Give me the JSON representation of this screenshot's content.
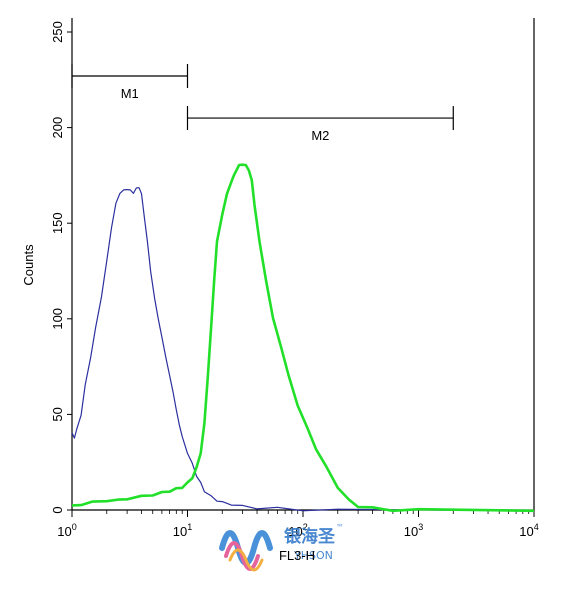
{
  "chart_data": {
    "type": "line",
    "title": "",
    "xlabel": "FL3-H",
    "ylabel": "Counts",
    "xscale": "log",
    "xlim": [
      1,
      10000
    ],
    "ylim": [
      0,
      250
    ],
    "grid": false,
    "x_ticks": [
      {
        "value": 1,
        "base": "10",
        "exp": "0"
      },
      {
        "value": 10,
        "base": "10",
        "exp": "1"
      },
      {
        "value": 100,
        "base": "10",
        "exp": "2"
      },
      {
        "value": 1000,
        "base": "10",
        "exp": "3"
      },
      {
        "value": 10000,
        "base": "10",
        "exp": "4"
      }
    ],
    "y_ticks": [
      "0",
      "50",
      "100",
      "150",
      "200",
      "250"
    ],
    "gates": [
      {
        "label": "M1",
        "x_start": 1,
        "x_end": 10,
        "y": 227
      },
      {
        "label": "M2",
        "x_start": 10,
        "x_end": 2000,
        "y": 205
      }
    ],
    "series": [
      {
        "color": "#2b2f9e",
        "x": [
          1.0,
          1.05,
          1.1,
          1.2,
          1.3,
          1.45,
          1.6,
          1.8,
          2.0,
          2.2,
          2.4,
          2.6,
          2.8,
          3.0,
          3.2,
          3.4,
          3.6,
          3.8,
          4.0,
          4.2,
          4.5,
          4.8,
          5.2,
          5.6,
          6.0,
          6.5,
          7.0,
          7.5,
          8.0,
          8.5,
          9.0,
          10.0,
          11.0,
          12.0,
          13.0,
          14.0,
          16.0,
          18.0,
          20.0,
          24.0,
          30.0,
          40.0,
          60.0,
          100.0,
          200.0,
          10000.0
        ],
        "y": [
          40,
          38,
          42,
          50,
          65,
          80,
          95,
          112,
          130,
          148,
          160,
          166,
          167,
          168,
          167,
          166,
          168,
          169,
          165,
          155,
          140,
          125,
          110,
          100,
          90,
          80,
          70,
          62,
          52,
          45,
          38,
          30,
          24,
          18,
          14,
          10,
          7,
          5,
          4,
          3,
          2,
          1,
          1,
          0,
          0,
          0
        ]
      },
      {
        "color": "#22e02a",
        "x": [
          1.0,
          1.2,
          1.5,
          2.0,
          2.5,
          3.0,
          4.0,
          5.0,
          6.0,
          7.0,
          8.0,
          9.0,
          10.0,
          11.0,
          12.0,
          13.0,
          14.0,
          15.0,
          16.0,
          17.0,
          18.0,
          20.0,
          22.0,
          25.0,
          28.0,
          30.0,
          32.0,
          34.0,
          36.0,
          38.0,
          42.0,
          48.0,
          55.0,
          65.0,
          75.0,
          90.0,
          110.0,
          130.0,
          160.0,
          200.0,
          250.0,
          300.0,
          400.0,
          600.0,
          1000.0,
          10000.0
        ],
        "y": [
          2,
          3,
          4,
          5,
          5,
          6,
          7,
          8,
          9,
          10,
          11,
          12,
          14,
          17,
          22,
          30,
          45,
          70,
          95,
          120,
          140,
          155,
          165,
          175,
          180,
          181,
          180,
          178,
          172,
          160,
          140,
          120,
          100,
          85,
          70,
          55,
          42,
          32,
          22,
          12,
          5,
          2,
          1,
          0,
          0,
          0
        ]
      }
    ]
  },
  "watermark": {
    "text": "银海圣",
    "tm": "™",
    "sub": "YHSON"
  }
}
